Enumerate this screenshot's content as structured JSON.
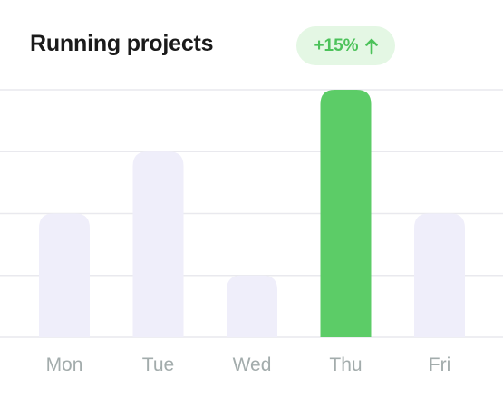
{
  "header": {
    "title": "Running projects",
    "badge_text": "+15%",
    "badge_icon": "arrow-up-icon"
  },
  "colors": {
    "bar_default": "#efeefa",
    "bar_highlight": "#5ccc67",
    "grid": "#e9e9ee",
    "tick_label": "#a3acac",
    "badge_bg": "#e4f7e4",
    "badge_text": "#4cc25a"
  },
  "chart_data": {
    "type": "bar",
    "title": "Running projects",
    "categories": [
      "Mon",
      "Tue",
      "Wed",
      "Thu",
      "Fri"
    ],
    "values": [
      2,
      3,
      1,
      4,
      2
    ],
    "highlight": "Thu",
    "ylim": [
      0,
      4
    ],
    "grid": true,
    "xlabel": "",
    "ylabel": ""
  }
}
